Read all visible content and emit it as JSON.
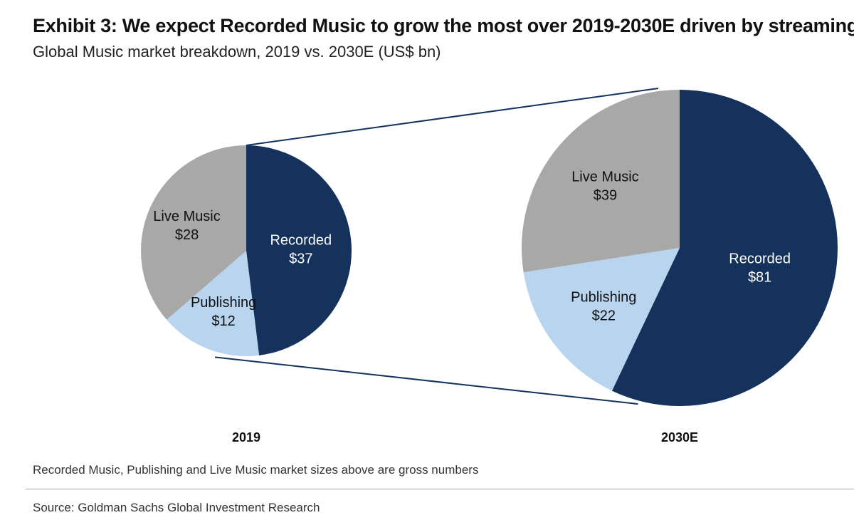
{
  "title": "Exhibit 3: We expect Recorded Music to grow the most over 2019-2030E driven by streaming",
  "subtitle": "Global Music market breakdown, 2019 vs. 2030E (US$ bn)",
  "note": "Recorded Music, Publishing and Live Music market sizes above are gross numbers",
  "source": "Source: Goldman Sachs Global Investment Research",
  "colors": {
    "recorded": "#14325c",
    "publishing": "#b8d4ef",
    "live": "#a8a8a8",
    "connector": "#14325c"
  },
  "chart_data": [
    {
      "type": "pie",
      "title": "2019",
      "slices": [
        {
          "key": "recorded",
          "name": "Recorded",
          "value": 37,
          "value_label": "$37"
        },
        {
          "key": "publishing",
          "name": "Publishing",
          "value": 12,
          "value_label": "$12"
        },
        {
          "key": "live",
          "name": "Live Music",
          "value": 28,
          "value_label": "$28"
        }
      ]
    },
    {
      "type": "pie",
      "title": "2030E",
      "slices": [
        {
          "key": "recorded",
          "name": "Recorded",
          "value": 81,
          "value_label": "$81"
        },
        {
          "key": "publishing",
          "name": "Publishing",
          "value": 22,
          "value_label": "$22"
        },
        {
          "key": "live",
          "name": "Live Music",
          "value": 39,
          "value_label": "$39"
        }
      ]
    }
  ]
}
